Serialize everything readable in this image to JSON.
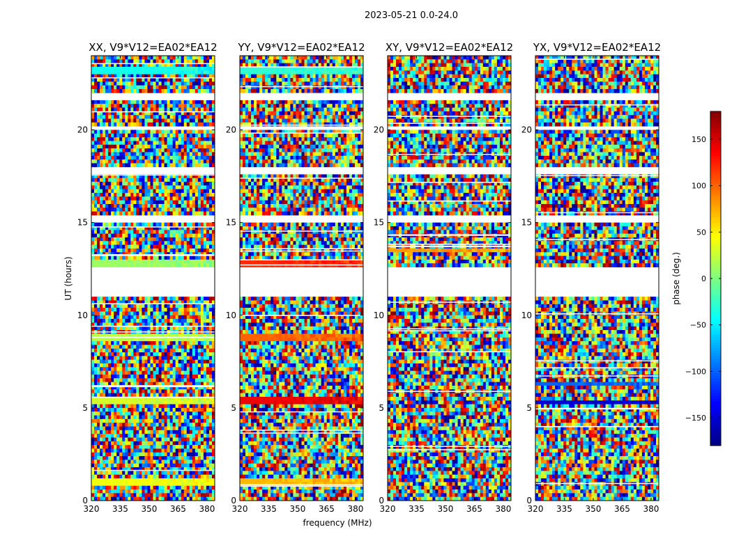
{
  "figure": {
    "suptitle": "2023-05-21 0.0-24.0",
    "shared_xlabel": "frequency (MHz)",
    "shared_ylabel": "UT (hours)"
  },
  "chart_data": [
    {
      "type": "heatmap",
      "title": "XX, V9*V12=EA02*EA12",
      "xlabel": "",
      "ylabel": "UT (hours)",
      "xlim": [
        320,
        384
      ],
      "ylim": [
        0,
        24
      ],
      "xticks": [
        320,
        335,
        350,
        365,
        380
      ],
      "yticks": [
        0,
        5,
        10,
        15,
        20
      ],
      "z": "phase (deg.)",
      "flagged_ut_ranges": [
        [
          11.0,
          12.5
        ],
        [
          15.0,
          15.3
        ],
        [
          17.7,
          18.0
        ],
        [
          20.0,
          20.2
        ],
        [
          21.6,
          21.9
        ]
      ],
      "notes": "noise-like phase pattern with coherent bands near 13 h, 9 h, 5.5 h, 1 h"
    },
    {
      "type": "heatmap",
      "title": "YY, V9*V12=EA02*EA12",
      "xlabel": "",
      "ylabel": "",
      "xlim": [
        320,
        384
      ],
      "ylim": [
        0,
        24
      ],
      "xticks": [
        320,
        335,
        350,
        365,
        380
      ],
      "yticks": [
        0,
        5,
        10,
        15,
        20
      ],
      "z": "phase (deg.)",
      "flagged_ut_ranges": [
        [
          11.0,
          12.5
        ],
        [
          15.0,
          15.3
        ],
        [
          17.7,
          18.0
        ],
        [
          20.0,
          20.2
        ],
        [
          21.6,
          21.9
        ]
      ],
      "notes": "coherent phase bands near 13 h, 9 h, 5.5 h, 1 h"
    },
    {
      "type": "heatmap",
      "title": "XY, V9*V12=EA02*EA12",
      "xlabel": "",
      "ylabel": "",
      "xlim": [
        320,
        384
      ],
      "ylim": [
        0,
        24
      ],
      "xticks": [
        320,
        335,
        350,
        365,
        380
      ],
      "yticks": [
        0,
        5,
        10,
        15,
        20
      ],
      "z": "phase (deg.)",
      "flagged_ut_ranges": [
        [
          11.0,
          12.5
        ],
        [
          15.0,
          15.3
        ],
        [
          17.7,
          18.0
        ],
        [
          20.0,
          20.2
        ],
        [
          21.6,
          21.9
        ]
      ],
      "notes": "mostly noise-like phase"
    },
    {
      "type": "heatmap",
      "title": "YX, V9*V12=EA02*EA12",
      "xlabel": "",
      "ylabel": "",
      "xlim": [
        320,
        384
      ],
      "ylim": [
        0,
        24
      ],
      "xticks": [
        320,
        335,
        350,
        365,
        380
      ],
      "yticks": [
        0,
        5,
        10,
        15,
        20
      ],
      "z": "phase (deg.)",
      "flagged_ut_ranges": [
        [
          11.0,
          12.5
        ],
        [
          15.0,
          15.3
        ],
        [
          17.7,
          18.0
        ],
        [
          20.0,
          20.2
        ],
        [
          21.6,
          21.9
        ]
      ],
      "notes": "mostly noise-like phase"
    }
  ],
  "colorbar": {
    "label": "phase (deg.)",
    "range": [
      -180,
      180
    ],
    "ticks": [
      -150,
      -100,
      -50,
      0,
      50,
      100,
      150
    ],
    "tick_labels": [
      "−150",
      "−100",
      "−50",
      "0",
      "50",
      "100",
      "150"
    ],
    "colormap": "jet"
  },
  "axis_ticks": {
    "x_labels": [
      "320",
      "335",
      "350",
      "365",
      "380"
    ],
    "y_labels": [
      "0",
      "5",
      "10",
      "15",
      "20"
    ]
  }
}
